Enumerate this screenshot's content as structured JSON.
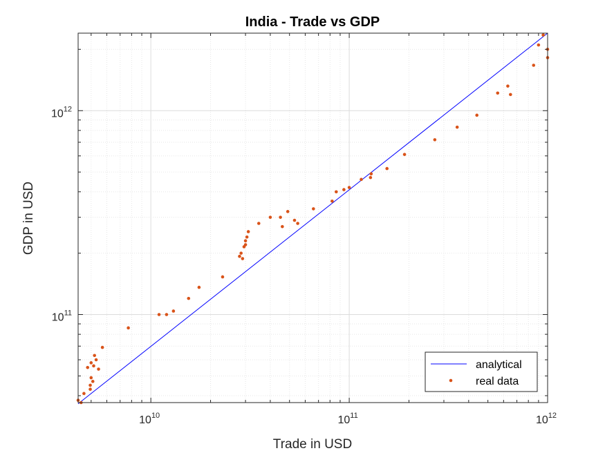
{
  "chart_data": {
    "type": "scatter",
    "title": "India - Trade vs GDP",
    "xlabel": "Trade in USD",
    "ylabel": "GDP in USD",
    "xscale": "log",
    "yscale": "log",
    "xlim": [
      4300000000.0,
      1000000000000.0
    ],
    "ylim": [
      37000000000.0,
      2400000000000.0
    ],
    "grid": true,
    "minor_grid": true,
    "legend_position": "bottom-right",
    "x_ticks": [
      {
        "value": 10000000000.0,
        "base": "10",
        "exp": "10"
      },
      {
        "value": 100000000000.0,
        "base": "10",
        "exp": "11"
      },
      {
        "value": 1000000000000.0,
        "base": "10",
        "exp": "12"
      }
    ],
    "y_ticks": [
      {
        "value": 100000000000.0,
        "base": "10",
        "exp": "11"
      },
      {
        "value": 1000000000000.0,
        "base": "10",
        "exp": "12"
      }
    ],
    "series": [
      {
        "name": "analytical",
        "kind": "line",
        "color": "#0000ff",
        "x": [
          4300000000.0,
          1000000000000.0
        ],
        "y": [
          36500000000.0,
          2400000000000.0
        ]
      },
      {
        "name": "real data",
        "kind": "scatter",
        "color": "#d95319",
        "x": [
          4300000000.0,
          4450000000.0,
          4600000000.0,
          4800000000.0,
          5000000000.0,
          5000000000.0,
          5200000000.0,
          5300000000.0,
          4950000000.0,
          5100000000.0,
          5450000000.0,
          5700000000.0,
          4950000000.0,
          5150000000.0,
          7700000000.0,
          11000000000.0,
          12000000000.0,
          13000000000.0,
          15500000000.0,
          17500000000.0,
          23000000000.0,
          28000000000.0,
          28500000000.0,
          29000000000.0,
          29500000000.0,
          30000000000.0,
          30000000000.0,
          30500000000.0,
          31000000000.0,
          35000000000.0,
          40000000000.0,
          45000000000.0,
          46000000000.0,
          49000000000.0,
          53000000000.0,
          55000000000.0,
          66000000000.0,
          82000000000.0,
          86000000000.0,
          94000000000.0,
          100000000000.0,
          115000000000.0,
          128000000000.0,
          129000000000.0,
          155000000000.0,
          190000000000.0,
          270000000000.0,
          350000000000.0,
          440000000000.0,
          560000000000.0,
          630000000000.0,
          650000000000.0,
          850000000000.0,
          900000000000.0,
          950000000000.0,
          1000000000000.0,
          1000000000000.0
        ],
        "y": [
          38000000000.0,
          37000000000.0,
          41000000000.0,
          55000000000.0,
          49000000000.0,
          58000000000.0,
          63000000000.0,
          60000000000.0,
          45000000000.0,
          47000000000.0,
          54000000000.0,
          69000000000.0,
          43000000000.0,
          56000000000.0,
          86000000000.0,
          100000000000.0,
          100000000000.0,
          104000000000.0,
          120000000000.0,
          136000000000.0,
          153000000000.0,
          193000000000.0,
          200000000000.0,
          188000000000.0,
          215000000000.0,
          220000000000.0,
          230000000000.0,
          240000000000.0,
          255000000000.0,
          280000000000.0,
          300000000000.0,
          300000000000.0,
          270000000000.0,
          320000000000.0,
          290000000000.0,
          280000000000.0,
          330000000000.0,
          360000000000.0,
          400000000000.0,
          410000000000.0,
          420000000000.0,
          460000000000.0,
          470000000000.0,
          490000000000.0,
          520000000000.0,
          610000000000.0,
          720000000000.0,
          830000000000.0,
          950000000000.0,
          1220000000000.0,
          1320000000000.0,
          1200000000000.0,
          1670000000000.0,
          2100000000000.0,
          2350000000000.0,
          2000000000000.0,
          1820000000000.0
        ]
      }
    ]
  }
}
